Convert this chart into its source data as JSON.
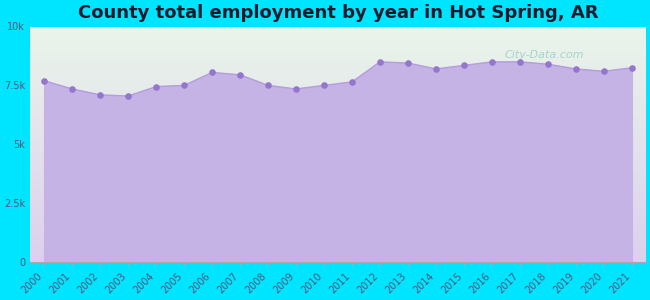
{
  "title": "County total employment by year in Hot Spring, AR",
  "years": [
    2000,
    2001,
    2002,
    2003,
    2004,
    2005,
    2006,
    2007,
    2008,
    2009,
    2010,
    2011,
    2012,
    2013,
    2014,
    2015,
    2016,
    2017,
    2018,
    2019,
    2020,
    2021
  ],
  "values": [
    7700,
    7350,
    7100,
    7050,
    7450,
    7500,
    8050,
    7950,
    7500,
    7350,
    7500,
    7650,
    8500,
    8450,
    8200,
    8350,
    8500,
    8500,
    8400,
    8200,
    8100,
    8250
  ],
  "ylim": [
    0,
    10000
  ],
  "yticks": [
    0,
    2500,
    5000,
    7500,
    10000
  ],
  "ytick_labels": [
    "0",
    "2.5k",
    "5k",
    "7.5k",
    "10k"
  ],
  "line_color": "#b39ddb",
  "fill_color": "#c5b3e6",
  "marker_color": "#9575cd",
  "bg_outer": "#00e5ff",
  "bg_plot_grad_top": "#eaf5ea",
  "bg_plot_grad_bottom": "#ddd0ee",
  "title_fontsize": 13,
  "title_fontweight": "bold",
  "title_color": "#1a1a2e",
  "watermark": "City-Data.com",
  "tick_label_color": "#555577",
  "tick_label_fontsize": 7
}
